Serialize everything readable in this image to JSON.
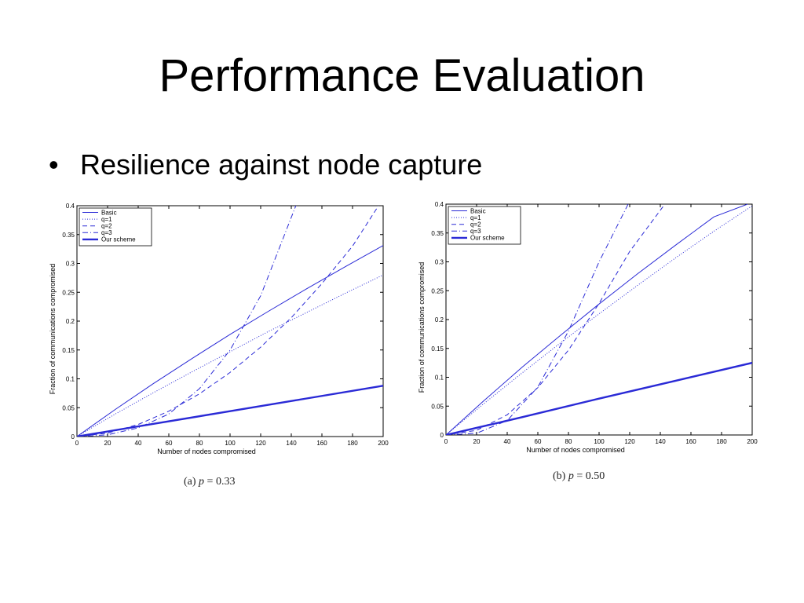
{
  "slide": {
    "title": "Performance Evaluation",
    "bullet_symbol": "•",
    "bullet_text": "Resilience against node capture"
  },
  "colors": {
    "line": "#2a2ad6",
    "axis": "#000000",
    "background": "#ffffff"
  },
  "captions": [
    {
      "prefix": "(a)",
      "var": "p",
      "rest": "= 0.33"
    },
    {
      "prefix": "(b)",
      "var": "p",
      "rest": "= 0.50"
    }
  ],
  "chart_data": [
    {
      "type": "line",
      "xlabel": "Number of nodes compromised",
      "ylabel": "Fraction of communications compromised",
      "xlim": [
        0,
        200
      ],
      "ylim": [
        0,
        0.4
      ],
      "xticks": [
        0,
        20,
        40,
        60,
        80,
        100,
        120,
        140,
        160,
        180,
        200
      ],
      "yticks": [
        "0",
        "0.05",
        "0.1",
        "0.15",
        "0.2",
        "0.25",
        "0.3",
        "0.35",
        "0.4"
      ],
      "grid": false,
      "legend_position": "top-left",
      "series": [
        {
          "name": "Basic",
          "style": "solid",
          "width": 1,
          "x": [
            0,
            25,
            50,
            75,
            100,
            125,
            150,
            175,
            200
          ],
          "y": [
            0,
            0.047,
            0.092,
            0.135,
            0.177,
            0.217,
            0.256,
            0.294,
            0.331
          ]
        },
        {
          "name": "q=1",
          "style": "dotted",
          "width": 1,
          "x": [
            0,
            25,
            50,
            75,
            100,
            125,
            150,
            175,
            200
          ],
          "y": [
            0,
            0.039,
            0.076,
            0.112,
            0.147,
            0.182,
            0.215,
            0.248,
            0.28
          ]
        },
        {
          "name": "q=2",
          "style": "dashed",
          "width": 1,
          "x": [
            0,
            20,
            40,
            60,
            80,
            100,
            120,
            140,
            160,
            180,
            197
          ],
          "y": [
            0,
            0.006,
            0.021,
            0.044,
            0.074,
            0.111,
            0.155,
            0.206,
            0.265,
            0.33,
            0.4
          ]
        },
        {
          "name": "q=3",
          "style": "dashdot",
          "width": 1,
          "x": [
            0,
            20,
            40,
            60,
            80,
            100,
            120,
            143
          ],
          "y": [
            0,
            0.003,
            0.015,
            0.039,
            0.083,
            0.15,
            0.244,
            0.4
          ]
        },
        {
          "name": "Our scheme",
          "style": "solid",
          "width": 2.4,
          "x": [
            0,
            50,
            100,
            150,
            200
          ],
          "y": [
            0,
            0.022,
            0.044,
            0.066,
            0.088
          ]
        }
      ]
    },
    {
      "type": "line",
      "xlabel": "Number of nodes compromised",
      "ylabel": "Fraction of communications compromised",
      "xlim": [
        0,
        200
      ],
      "ylim": [
        0,
        0.4
      ],
      "xticks": [
        0,
        20,
        40,
        60,
        80,
        100,
        120,
        140,
        160,
        180,
        200
      ],
      "yticks": [
        "0",
        "0.05",
        "0.1",
        "0.15",
        "0.2",
        "0.25",
        "0.3",
        "0.35",
        "0.4"
      ],
      "grid": false,
      "legend_position": "top-left",
      "series": [
        {
          "name": "Basic",
          "style": "solid",
          "width": 1,
          "x": [
            0,
            25,
            50,
            75,
            100,
            125,
            150,
            175,
            197
          ],
          "y": [
            0,
            0.06,
            0.118,
            0.173,
            0.227,
            0.279,
            0.329,
            0.378,
            0.4
          ]
        },
        {
          "name": "q=1",
          "style": "dotted",
          "width": 1,
          "x": [
            0,
            25,
            50,
            75,
            100,
            125,
            150,
            175,
            200
          ],
          "y": [
            0,
            0.055,
            0.108,
            0.16,
            0.21,
            0.259,
            0.307,
            0.353,
            0.397
          ]
        },
        {
          "name": "q=2",
          "style": "dashed",
          "width": 1,
          "x": [
            0,
            20,
            40,
            60,
            80,
            100,
            120,
            143
          ],
          "y": [
            0,
            0.008,
            0.035,
            0.082,
            0.147,
            0.228,
            0.318,
            0.4
          ]
        },
        {
          "name": "q=3",
          "style": "dashdot",
          "width": 1,
          "x": [
            0,
            20,
            40,
            60,
            80,
            100,
            119
          ],
          "y": [
            0,
            0.003,
            0.025,
            0.083,
            0.18,
            0.3,
            0.4
          ]
        },
        {
          "name": "Our scheme",
          "style": "solid",
          "width": 2.4,
          "x": [
            0,
            50,
            100,
            150,
            200
          ],
          "y": [
            0,
            0.031,
            0.063,
            0.094,
            0.125
          ]
        }
      ]
    }
  ]
}
